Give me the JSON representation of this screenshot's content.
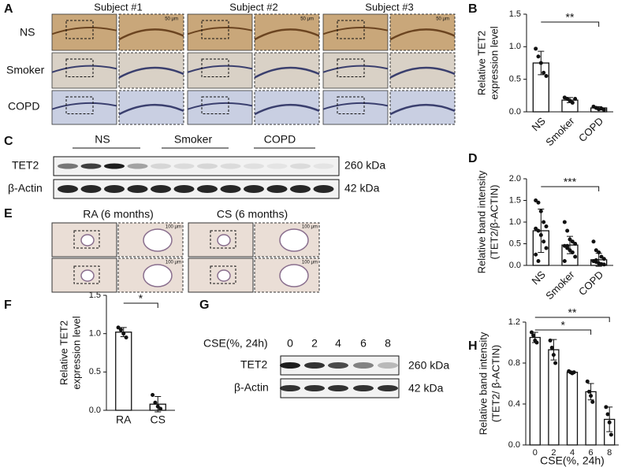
{
  "chart_data": [
    {
      "type": "bar",
      "ylabel": [
        "Relative TET2",
        "expression level"
      ],
      "categories": [
        "NS",
        "Smoker",
        "COPD"
      ],
      "values": [
        0.75,
        0.18,
        0.06
      ],
      "errors": [
        0.18,
        0.04,
        0.02
      ],
      "points": [
        [
          0.97,
          0.85,
          0.75,
          0.6,
          0.55
        ],
        [
          0.22,
          0.2,
          0.17,
          0.14,
          0.2
        ],
        [
          0.08,
          0.06,
          0.04,
          0.05,
          0.03
        ]
      ],
      "color": "#ffffff",
      "ylim": [
        0,
        1.5
      ],
      "yticks": [
        {
          "value": 0,
          "label": "0.0"
        },
        {
          "value": 0.5,
          "label": "0.5"
        },
        {
          "value": 1,
          "label": "1.0"
        },
        {
          "value": 1.5,
          "label": "1.5"
        }
      ],
      "annotations": [
        {
          "text": "**",
          "between": [
            "NS",
            "COPD"
          ]
        }
      ]
    },
    {
      "type": "bar",
      "ylabel": [
        "Relative band intensity",
        "(TET2/β-ACTIN)"
      ],
      "categories": [
        "NS",
        "Smoker",
        "COPD"
      ],
      "values": [
        0.8,
        0.47,
        0.13
      ],
      "errors": [
        0.5,
        0.2,
        0.15
      ],
      "points": [
        [
          1.5,
          1.45,
          1.25,
          1.0,
          0.9,
          0.85,
          0.8,
          0.7,
          0.55,
          0.4,
          0.25,
          0.1
        ],
        [
          1.0,
          0.8,
          0.6,
          0.55,
          0.5,
          0.45,
          0.4,
          0.35,
          0.3,
          0.2,
          0.1,
          0.45
        ],
        [
          0.55,
          0.35,
          0.3,
          0.2,
          0.15,
          0.1,
          0.08,
          0.05,
          0.03,
          0.02,
          0.1,
          0.12
        ]
      ],
      "color": "#ffffff",
      "ylim": [
        0,
        2
      ],
      "yticks": [
        {
          "value": 0,
          "label": "0.0"
        },
        {
          "value": 0.5,
          "label": "0.5"
        },
        {
          "value": 1,
          "label": "1.0"
        },
        {
          "value": 1.5,
          "label": "1.5"
        },
        {
          "value": 2,
          "label": "2.0"
        }
      ],
      "annotations": [
        {
          "text": "***",
          "between": [
            "NS",
            "COPD"
          ]
        }
      ]
    },
    {
      "type": "bar",
      "ylabel": [
        "Relative TET2",
        "expression level"
      ],
      "categories": [
        "RA",
        "CS"
      ],
      "values": [
        1.02,
        0.08
      ],
      "errors": [
        0.06,
        0.1
      ],
      "points": [
        [
          1.08,
          1.05,
          1.0,
          0.95
        ],
        [
          0.2,
          0.1,
          0.05,
          0.02
        ]
      ],
      "color": "#ffffff",
      "ylim": [
        0,
        1.5
      ],
      "yticks": [
        {
          "value": 0,
          "label": "0.0"
        },
        {
          "value": 0.5,
          "label": "0.5"
        },
        {
          "value": 1,
          "label": "1.0"
        },
        {
          "value": 1.5,
          "label": "1.5"
        }
      ],
      "annotations": [
        {
          "text": "*",
          "between": [
            "RA",
            "CS"
          ]
        }
      ]
    },
    {
      "type": "bar",
      "ylabel": [
        "Relative band intensity",
        "(TET2/ β-ACTIN)"
      ],
      "xlabel": "CSE(%, 24h)",
      "categories": [
        "0",
        "2",
        "4",
        "6",
        "8"
      ],
      "values": [
        1.05,
        0.93,
        0.71,
        0.52,
        0.25
      ],
      "errors": [
        0.05,
        0.1,
        0.01,
        0.08,
        0.12
      ],
      "points": [
        [
          1.1,
          1.07,
          1.02,
          1.0
        ],
        [
          1.02,
          0.95,
          0.88,
          0.8
        ],
        [
          0.72,
          0.71,
          0.7,
          0.71
        ],
        [
          0.62,
          0.52,
          0.48,
          0.42
        ],
        [
          0.37,
          0.3,
          0.22,
          0.1
        ]
      ],
      "color": "#ffffff",
      "ylim": [
        0,
        1.2
      ],
      "yticks": [
        {
          "value": 0,
          "label": "0.0"
        },
        {
          "value": 0.4,
          "label": "0.4"
        },
        {
          "value": 0.8,
          "label": "0.8"
        },
        {
          "value": 1.2,
          "label": "1.2"
        }
      ],
      "annotations": [
        {
          "text": "**",
          "between": [
            "0",
            "8"
          ]
        },
        {
          "text": "*",
          "between": [
            "0",
            "6"
          ]
        }
      ]
    }
  ],
  "figure": {
    "panel_letters": [
      "A",
      "B",
      "C",
      "D",
      "E",
      "F",
      "G",
      "H"
    ],
    "panel_a": {
      "subjects": [
        "Subject #1",
        "Subject #2",
        "Subject #3"
      ],
      "rows": [
        "NS",
        "Smoker",
        "COPD"
      ],
      "scale": "50 μm"
    },
    "panel_c": {
      "groups": [
        "NS",
        "Smoker",
        "COPD"
      ],
      "bands": [
        "TET2",
        "β-Actin"
      ],
      "sizes": [
        "260 kDa",
        "42 kDa"
      ]
    },
    "panel_e": {
      "groups": [
        "RA (6 months)",
        "CS (6 months)"
      ],
      "scale": "100 μm"
    },
    "panel_g": {
      "axis": "CSE(%, 24h)",
      "lanes": [
        "0",
        "2",
        "4",
        "6",
        "8"
      ],
      "bands": [
        "TET2",
        "β-Actin"
      ],
      "sizes": [
        "260 kDa",
        "42 kDa"
      ]
    }
  }
}
